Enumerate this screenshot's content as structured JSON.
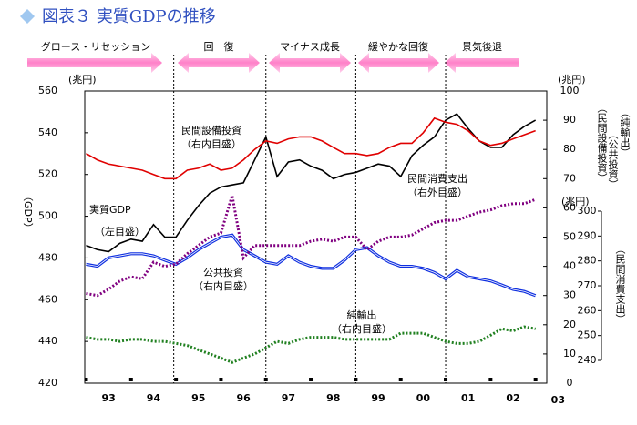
{
  "chart_data": {
    "type": "line",
    "title": "図表３ 実質GDPの推移",
    "y_unit": "(兆円)",
    "y2_unit": "(兆円)",
    "y3_unit": "(兆円)",
    "ylabel": "（GDP）",
    "y2labels": [
      "（民間設備投資）",
      "（公共投資）",
      "（純輸出）"
    ],
    "y3label": "（民間消費支出）",
    "phases": [
      "グロース・リセッション",
      "回　復",
      "マイナス成長",
      "緩やかな回復",
      "景気後退"
    ],
    "phase_boundaries": [
      1994.95,
      1997,
      1999,
      2001
    ],
    "annotations": [
      "民間設備投資",
      "（右内目盛）",
      "民間消費支出",
      "（右外目盛）",
      "実質GDP",
      "（左目盛）",
      "公共投資",
      "（右内目盛）",
      "純輸出",
      "（右内目盛）"
    ],
    "x": [
      1993,
      1993.25,
      1993.5,
      1993.75,
      1994,
      1994.25,
      1994.5,
      1994.75,
      1995,
      1995.25,
      1995.5,
      1995.75,
      1996,
      1996.25,
      1996.5,
      1996.75,
      1997,
      1997.25,
      1997.5,
      1997.75,
      1998,
      1998.25,
      1998.5,
      1998.75,
      1999,
      1999.25,
      1999.5,
      1999.75,
      2000,
      2000.25,
      2000.5,
      2000.75,
      2001,
      2001.25,
      2001.5,
      2001.75,
      2002,
      2002.25,
      2002.5,
      2002.75,
      2003
    ],
    "xlim": [
      1992.97,
      2003.25
    ],
    "xticks": [
      {
        "value": 1993.5,
        "label": "93"
      },
      {
        "value": 1994.5,
        "label": "94"
      },
      {
        "value": 1995.5,
        "label": "95"
      },
      {
        "value": 1996.5,
        "label": "96"
      },
      {
        "value": 1997.5,
        "label": "97"
      },
      {
        "value": 1998.5,
        "label": "98"
      },
      {
        "value": 1999.5,
        "label": "99"
      },
      {
        "value": 2000.5,
        "label": "00"
      },
      {
        "value": 2001.5,
        "label": "01"
      },
      {
        "value": 2002.5,
        "label": "02"
      },
      {
        "value": 2003.5,
        "label": "03"
      }
    ],
    "xticks_minor": [
      1993,
      1994,
      1995,
      1996,
      1997,
      1998,
      1999,
      2000,
      2001,
      2002,
      2003
    ],
    "ylim": [
      420,
      560
    ],
    "yticks": [
      420,
      440,
      460,
      480,
      500,
      520,
      540,
      560
    ],
    "y2lim": [
      0,
      100
    ],
    "y2ticks": [
      0,
      10,
      20,
      30,
      40,
      50,
      60,
      70,
      80,
      90,
      100
    ],
    "y3lim": [
      240,
      300
    ],
    "y3ticks": [
      240,
      250,
      260,
      270,
      280,
      290,
      300
    ],
    "series": [
      {
        "name": "実質GDP",
        "color": "#000000",
        "axis": "y",
        "values": [
          486,
          484,
          483,
          487,
          489,
          488,
          496,
          490,
          490,
          498,
          505,
          511,
          514,
          515,
          516,
          527,
          538,
          519,
          526,
          527,
          524,
          522,
          518,
          520,
          521,
          523,
          525,
          524,
          519,
          529,
          534,
          538,
          546,
          549,
          542,
          536,
          533,
          533,
          539,
          543,
          546
        ]
      },
      {
        "name": "民間設備投資",
        "color": "#e00000",
        "axis": "y2",
        "values": [
          78.6,
          76.4,
          75,
          74.3,
          73.6,
          72.9,
          71.4,
          70,
          70,
          72.9,
          73.6,
          75,
          72.9,
          73.6,
          76.4,
          80,
          82.9,
          82.1,
          83.6,
          84.3,
          84.3,
          82.9,
          80.7,
          78.6,
          78.6,
          77.9,
          78.6,
          80.7,
          82.1,
          82.1,
          85.7,
          90.7,
          89.3,
          88.6,
          86.4,
          82.9,
          81.4,
          82.1,
          83.6,
          85,
          86.4
        ]
      },
      {
        "name": "公共投資",
        "color": "#1030e0",
        "axis": "y2",
        "values": [
          40.7,
          40,
          42.9,
          43.6,
          44.3,
          44.3,
          43.6,
          42.1,
          40.7,
          42.9,
          45.7,
          47.9,
          50,
          50.7,
          45.7,
          43.6,
          41.4,
          40.7,
          43.6,
          41.4,
          40,
          39.3,
          39.3,
          42.1,
          45.7,
          46.4,
          43.6,
          41.4,
          40,
          40,
          39.3,
          37.9,
          35.7,
          38.6,
          36.4,
          35.7,
          35,
          33.6,
          32.1,
          31.4,
          30
        ]
      },
      {
        "name": "純輸出",
        "color": "#208020",
        "axis": "y2",
        "dashed": true,
        "values": [
          15.7,
          15,
          15,
          14.3,
          15,
          15,
          14.3,
          14.3,
          13.6,
          12.9,
          11.4,
          10,
          8.6,
          7.1,
          8.6,
          10,
          12.1,
          14.3,
          13.6,
          15,
          15.7,
          15.7,
          15.7,
          15,
          15,
          15,
          15,
          15,
          17.1,
          17.1,
          17.1,
          15.7,
          14.3,
          13.6,
          13.6,
          14.3,
          16.4,
          18.6,
          17.9,
          19.3,
          18.6
        ]
      },
      {
        "name": "民間消費支出",
        "color": "#800080",
        "axis": "y3",
        "dashed": true,
        "values": [
          266.9,
          266.1,
          268.6,
          271.9,
          273.6,
          272.8,
          279.5,
          277.8,
          278.7,
          282.9,
          286.2,
          289.6,
          291.2,
          306.3,
          281.2,
          286.2,
          286.2,
          286.2,
          286.2,
          286.2,
          287.9,
          288.7,
          287.9,
          289.6,
          289.6,
          284.5,
          287.9,
          289.6,
          289.6,
          290.4,
          292.9,
          295.4,
          296.3,
          296.3,
          298,
          299.6,
          300.5,
          302.2,
          303,
          303,
          304.7
        ]
      }
    ]
  }
}
